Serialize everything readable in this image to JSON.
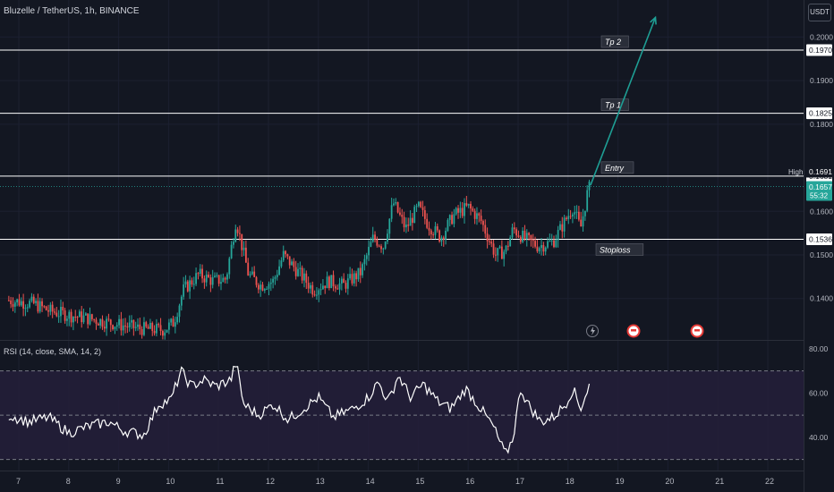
{
  "header": {
    "title": "Bluzelle / TetherUS, 1h, BINANCE",
    "currency": "USDT"
  },
  "rsi": {
    "title": "RSI (14, close, SMA, 14, 2)",
    "ticks": [
      "80.00",
      "60.00",
      "40.00"
    ]
  },
  "colors": {
    "background": "#131722",
    "up": "#26a69a",
    "down": "#ef5350",
    "level": "#ffffff",
    "arrow": "#1e9e94",
    "rsi_band": "#241f3a"
  },
  "chart_data": {
    "type": "candlestick",
    "symbol": "Bluzelle / TetherUS",
    "interval": "1h",
    "exchange": "BINANCE",
    "x_ticks": [
      "7",
      "8",
      "9",
      "10",
      "11",
      "12",
      "13",
      "14",
      "15",
      "16",
      "17",
      "18",
      "19",
      "20",
      "21",
      "22"
    ],
    "y_ticks": [
      "0.2000",
      "0.1900",
      "0.1800",
      "0.1600",
      "0.1500",
      "0.1400"
    ],
    "ylim": [
      0.1305,
      0.2085
    ],
    "levels": [
      {
        "name": "Tp 2",
        "value": "0.1970"
      },
      {
        "name": "Tp 1",
        "value": "0.1825"
      },
      {
        "name": "Entry",
        "value": "0.1681"
      },
      {
        "name": "Stoploss",
        "value": "0.1536"
      }
    ],
    "high": {
      "label": "High",
      "value": "0.1691"
    },
    "last_price": {
      "value": "0.1657",
      "countdown": "55:32"
    },
    "close_path": [
      {
        "day": 6.8,
        "close": 0.1396
      },
      {
        "day": 7.3,
        "close": 0.1388
      },
      {
        "day": 7.6,
        "close": 0.1372
      },
      {
        "day": 8.0,
        "close": 0.1362
      },
      {
        "day": 8.5,
        "close": 0.1352
      },
      {
        "day": 9.0,
        "close": 0.134
      },
      {
        "day": 9.5,
        "close": 0.133
      },
      {
        "day": 9.9,
        "close": 0.1328
      },
      {
        "day": 10.1,
        "close": 0.1345
      },
      {
        "day": 10.3,
        "close": 0.142
      },
      {
        "day": 10.6,
        "close": 0.1455
      },
      {
        "day": 10.9,
        "close": 0.144
      },
      {
        "day": 11.15,
        "close": 0.1445
      },
      {
        "day": 11.35,
        "close": 0.158
      },
      {
        "day": 11.6,
        "close": 0.1455
      },
      {
        "day": 11.85,
        "close": 0.143
      },
      {
        "day": 12.1,
        "close": 0.144
      },
      {
        "day": 12.3,
        "close": 0.15
      },
      {
        "day": 12.6,
        "close": 0.146
      },
      {
        "day": 12.9,
        "close": 0.142
      },
      {
        "day": 13.2,
        "close": 0.144
      },
      {
        "day": 13.5,
        "close": 0.143
      },
      {
        "day": 13.85,
        "close": 0.146
      },
      {
        "day": 14.1,
        "close": 0.154
      },
      {
        "day": 14.3,
        "close": 0.152
      },
      {
        "day": 14.5,
        "close": 0.162
      },
      {
        "day": 14.75,
        "close": 0.156
      },
      {
        "day": 15.0,
        "close": 0.161
      },
      {
        "day": 15.2,
        "close": 0.157
      },
      {
        "day": 15.45,
        "close": 0.154
      },
      {
        "day": 15.7,
        "close": 0.159
      },
      {
        "day": 16.0,
        "close": 0.161
      },
      {
        "day": 16.25,
        "close": 0.158
      },
      {
        "day": 16.55,
        "close": 0.15
      },
      {
        "day": 16.75,
        "close": 0.151
      },
      {
        "day": 16.9,
        "close": 0.156
      },
      {
        "day": 17.1,
        "close": 0.154
      },
      {
        "day": 17.4,
        "close": 0.152
      },
      {
        "day": 17.7,
        "close": 0.153
      },
      {
        "day": 17.95,
        "close": 0.158
      },
      {
        "day": 18.1,
        "close": 0.161
      },
      {
        "day": 18.25,
        "close": 0.156
      },
      {
        "day": 18.4,
        "close": 0.165
      },
      {
        "day": 18.45,
        "close": 0.1657
      }
    ],
    "projection": {
      "from": {
        "day": 18.45,
        "price": 0.166
      },
      "to": {
        "day": 19.75,
        "price": 0.2045
      }
    },
    "rsi_ylim": [
      25,
      84
    ],
    "rsi_guides": [
      70,
      50,
      30
    ],
    "rsi_path": [
      {
        "day": 6.8,
        "rsi": 50
      },
      {
        "day": 7.2,
        "rsi": 47
      },
      {
        "day": 7.6,
        "rsi": 49
      },
      {
        "day": 8.0,
        "rsi": 42
      },
      {
        "day": 8.4,
        "rsi": 45
      },
      {
        "day": 8.8,
        "rsi": 47
      },
      {
        "day": 9.1,
        "rsi": 43
      },
      {
        "day": 9.5,
        "rsi": 41
      },
      {
        "day": 9.8,
        "rsi": 55
      },
      {
        "day": 10.05,
        "rsi": 57
      },
      {
        "day": 10.25,
        "rsi": 70
      },
      {
        "day": 10.45,
        "rsi": 63
      },
      {
        "day": 10.7,
        "rsi": 66
      },
      {
        "day": 10.95,
        "rsi": 63
      },
      {
        "day": 11.25,
        "rsi": 66
      },
      {
        "day": 11.35,
        "rsi": 74
      },
      {
        "day": 11.5,
        "rsi": 55
      },
      {
        "day": 11.8,
        "rsi": 50
      },
      {
        "day": 12.1,
        "rsi": 55
      },
      {
        "day": 12.4,
        "rsi": 48
      },
      {
        "day": 12.7,
        "rsi": 53
      },
      {
        "day": 13.0,
        "rsi": 58
      },
      {
        "day": 13.3,
        "rsi": 49
      },
      {
        "day": 13.7,
        "rsi": 53
      },
      {
        "day": 14.0,
        "rsi": 58
      },
      {
        "day": 14.2,
        "rsi": 65
      },
      {
        "day": 14.4,
        "rsi": 56
      },
      {
        "day": 14.6,
        "rsi": 68
      },
      {
        "day": 14.85,
        "rsi": 58
      },
      {
        "day": 15.1,
        "rsi": 64
      },
      {
        "day": 15.4,
        "rsi": 56
      },
      {
        "day": 15.65,
        "rsi": 53
      },
      {
        "day": 15.95,
        "rsi": 62
      },
      {
        "day": 16.25,
        "rsi": 53
      },
      {
        "day": 16.5,
        "rsi": 45
      },
      {
        "day": 16.65,
        "rsi": 37
      },
      {
        "day": 16.75,
        "rsi": 32
      },
      {
        "day": 16.9,
        "rsi": 40
      },
      {
        "day": 17.05,
        "rsi": 62
      },
      {
        "day": 17.2,
        "rsi": 55
      },
      {
        "day": 17.45,
        "rsi": 47
      },
      {
        "day": 17.7,
        "rsi": 49
      },
      {
        "day": 17.95,
        "rsi": 55
      },
      {
        "day": 18.1,
        "rsi": 62
      },
      {
        "day": 18.25,
        "rsi": 53
      },
      {
        "day": 18.45,
        "rsi": 65
      }
    ]
  }
}
